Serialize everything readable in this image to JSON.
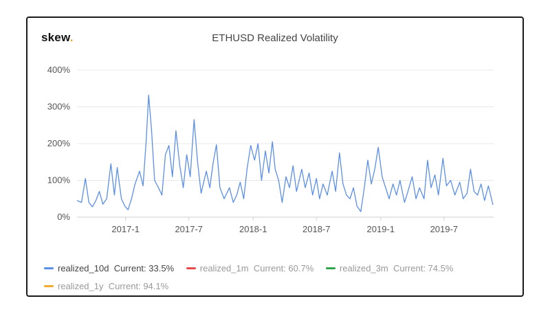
{
  "logo": {
    "text": "skew",
    "dot": ".",
    "dot_color": "#f5a623"
  },
  "chart_data": {
    "type": "line",
    "title": "ETHUSD Realized Volatility",
    "x_type": "date",
    "xlim": [
      "2016-08-15",
      "2019-11-20"
    ],
    "ylim": [
      0,
      4
    ],
    "y_ticks": [
      0,
      1,
      2,
      3,
      4
    ],
    "y_tick_labels": [
      "0%",
      "100%",
      "200%",
      "300%",
      "400%"
    ],
    "x_ticks": [
      "2017-01-01",
      "2017-07-01",
      "2018-01-01",
      "2018-07-01",
      "2019-01-01",
      "2019-07-01"
    ],
    "x_tick_labels": [
      "2017-1",
      "2017-7",
      "2018-1",
      "2018-7",
      "2019-1",
      "2019-7"
    ],
    "grid": true,
    "legend_position": "bottom",
    "series": [
      {
        "name": "realized_10d",
        "color": "#5b8ee6",
        "visible": true,
        "current": "33.5%",
        "points": [
          [
            "2016-08-15",
            0.45
          ],
          [
            "2016-08-28",
            0.4
          ],
          [
            "2016-09-08",
            1.05
          ],
          [
            "2016-09-18",
            0.4
          ],
          [
            "2016-09-28",
            0.28
          ],
          [
            "2016-10-08",
            0.45
          ],
          [
            "2016-10-18",
            0.7
          ],
          [
            "2016-10-28",
            0.35
          ],
          [
            "2016-11-08",
            0.5
          ],
          [
            "2016-11-20",
            1.45
          ],
          [
            "2016-11-30",
            0.6
          ],
          [
            "2016-12-08",
            1.35
          ],
          [
            "2016-12-20",
            0.5
          ],
          [
            "2016-12-30",
            0.3
          ],
          [
            "2017-01-08",
            0.2
          ],
          [
            "2017-01-18",
            0.5
          ],
          [
            "2017-01-28",
            0.9
          ],
          [
            "2017-02-10",
            1.25
          ],
          [
            "2017-02-20",
            0.85
          ],
          [
            "2017-03-01",
            2.1
          ],
          [
            "2017-03-08",
            3.32
          ],
          [
            "2017-03-16",
            2.4
          ],
          [
            "2017-03-25",
            1.0
          ],
          [
            "2017-04-05",
            0.8
          ],
          [
            "2017-04-15",
            0.6
          ],
          [
            "2017-04-25",
            1.7
          ],
          [
            "2017-05-05",
            1.95
          ],
          [
            "2017-05-15",
            1.1
          ],
          [
            "2017-05-25",
            2.35
          ],
          [
            "2017-06-05",
            1.4
          ],
          [
            "2017-06-15",
            0.8
          ],
          [
            "2017-06-25",
            1.7
          ],
          [
            "2017-07-05",
            1.1
          ],
          [
            "2017-07-16",
            2.65
          ],
          [
            "2017-07-26",
            1.5
          ],
          [
            "2017-08-05",
            0.65
          ],
          [
            "2017-08-20",
            1.25
          ],
          [
            "2017-08-30",
            0.8
          ],
          [
            "2017-09-08",
            1.45
          ],
          [
            "2017-09-18",
            1.97
          ],
          [
            "2017-09-28",
            0.8
          ],
          [
            "2017-10-10",
            0.5
          ],
          [
            "2017-10-25",
            0.8
          ],
          [
            "2017-11-05",
            0.4
          ],
          [
            "2017-11-15",
            0.6
          ],
          [
            "2017-11-25",
            0.95
          ],
          [
            "2017-12-05",
            0.5
          ],
          [
            "2017-12-15",
            1.35
          ],
          [
            "2017-12-25",
            1.95
          ],
          [
            "2018-01-05",
            1.55
          ],
          [
            "2018-01-15",
            2.0
          ],
          [
            "2018-01-25",
            1.0
          ],
          [
            "2018-02-05",
            1.8
          ],
          [
            "2018-02-15",
            1.2
          ],
          [
            "2018-02-25",
            2.05
          ],
          [
            "2018-03-05",
            1.3
          ],
          [
            "2018-03-15",
            1.0
          ],
          [
            "2018-03-25",
            0.4
          ],
          [
            "2018-04-05",
            1.1
          ],
          [
            "2018-04-15",
            0.8
          ],
          [
            "2018-04-25",
            1.4
          ],
          [
            "2018-05-05",
            0.7
          ],
          [
            "2018-05-20",
            1.3
          ],
          [
            "2018-05-30",
            0.8
          ],
          [
            "2018-06-10",
            1.2
          ],
          [
            "2018-06-20",
            0.6
          ],
          [
            "2018-07-01",
            1.05
          ],
          [
            "2018-07-10",
            0.5
          ],
          [
            "2018-07-20",
            0.9
          ],
          [
            "2018-08-01",
            0.6
          ],
          [
            "2018-08-15",
            1.25
          ],
          [
            "2018-08-25",
            0.7
          ],
          [
            "2018-09-05",
            1.75
          ],
          [
            "2018-09-15",
            0.9
          ],
          [
            "2018-09-25",
            0.6
          ],
          [
            "2018-10-05",
            0.5
          ],
          [
            "2018-10-15",
            0.8
          ],
          [
            "2018-10-25",
            0.3
          ],
          [
            "2018-11-05",
            0.15
          ],
          [
            "2018-11-15",
            0.8
          ],
          [
            "2018-11-25",
            1.55
          ],
          [
            "2018-12-05",
            0.9
          ],
          [
            "2018-12-15",
            1.3
          ],
          [
            "2018-12-25",
            1.9
          ],
          [
            "2019-01-05",
            1.1
          ],
          [
            "2019-01-15",
            0.8
          ],
          [
            "2019-01-25",
            0.5
          ],
          [
            "2019-02-05",
            0.9
          ],
          [
            "2019-02-15",
            0.6
          ],
          [
            "2019-02-25",
            1.0
          ],
          [
            "2019-03-10",
            0.4
          ],
          [
            "2019-03-20",
            0.7
          ],
          [
            "2019-04-01",
            1.1
          ],
          [
            "2019-04-12",
            0.5
          ],
          [
            "2019-04-22",
            0.8
          ],
          [
            "2019-05-05",
            0.5
          ],
          [
            "2019-05-15",
            1.55
          ],
          [
            "2019-05-25",
            0.8
          ],
          [
            "2019-06-05",
            1.15
          ],
          [
            "2019-06-15",
            0.6
          ],
          [
            "2019-06-28",
            1.6
          ],
          [
            "2019-07-08",
            0.85
          ],
          [
            "2019-07-20",
            1.0
          ],
          [
            "2019-08-01",
            0.6
          ],
          [
            "2019-08-15",
            0.95
          ],
          [
            "2019-08-25",
            0.5
          ],
          [
            "2019-09-05",
            0.65
          ],
          [
            "2019-09-15",
            1.3
          ],
          [
            "2019-09-25",
            0.7
          ],
          [
            "2019-10-05",
            0.6
          ],
          [
            "2019-10-15",
            0.9
          ],
          [
            "2019-10-25",
            0.45
          ],
          [
            "2019-11-05",
            0.85
          ],
          [
            "2019-11-18",
            0.335
          ]
        ]
      },
      {
        "name": "realized_1m",
        "color": "#e84a4a",
        "visible": false,
        "current": "60.7%"
      },
      {
        "name": "realized_3m",
        "color": "#2ea44f",
        "visible": false,
        "current": "74.5%"
      },
      {
        "name": "realized_1y",
        "color": "#f2a92f",
        "visible": false,
        "current": "94.1%"
      }
    ]
  },
  "legend": {
    "current_prefix": "Current: "
  }
}
